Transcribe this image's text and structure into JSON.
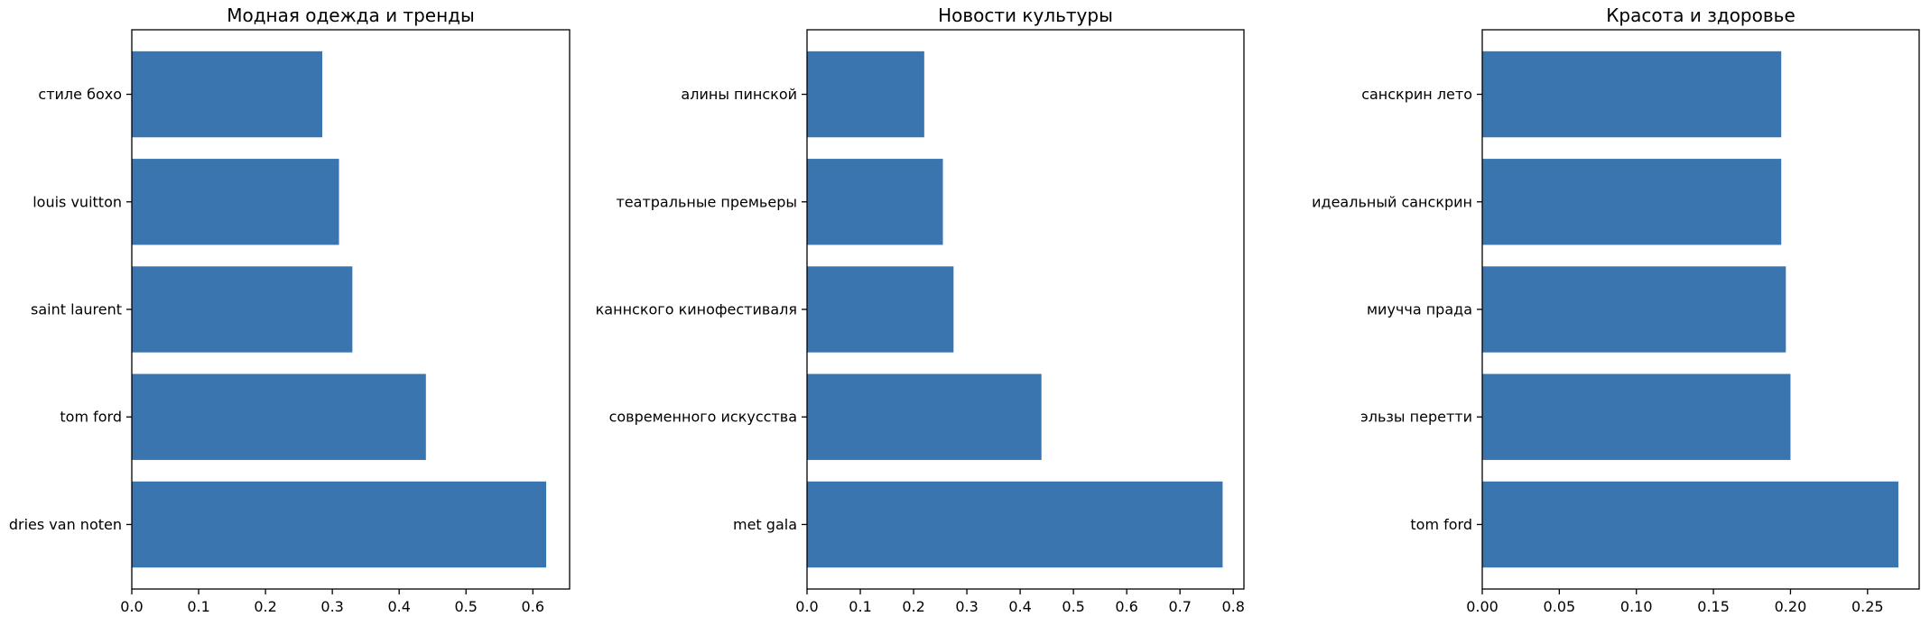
{
  "chart_data": [
    {
      "type": "bar",
      "orientation": "horizontal",
      "title": "Модная одежда и тренды",
      "categories": [
        "dries van noten",
        "tom ford",
        "saint laurent",
        "louis vuitton",
        "стиле бохо"
      ],
      "values": [
        0.62,
        0.44,
        0.33,
        0.31,
        0.285
      ],
      "xlim": [
        0,
        0.655
      ],
      "xticks": [
        "0.0",
        "0.1",
        "0.2",
        "0.3",
        "0.4",
        "0.5",
        "0.6"
      ],
      "xtick_values": [
        0,
        0.1,
        0.2,
        0.3,
        0.4,
        0.5,
        0.6
      ],
      "bar_color": "#3a75b0",
      "xlabel": "",
      "ylabel": "",
      "grid": false
    },
    {
      "type": "bar",
      "orientation": "horizontal",
      "title": "Новости культуры",
      "categories": [
        "met gala",
        "современного искусства",
        "каннского кинофестиваля",
        "театральные премьеры",
        "алины пинской"
      ],
      "values": [
        0.78,
        0.44,
        0.275,
        0.255,
        0.22
      ],
      "xlim": [
        0,
        0.82
      ],
      "xticks": [
        "0.0",
        "0.1",
        "0.2",
        "0.3",
        "0.4",
        "0.5",
        "0.6",
        "0.7",
        "0.8"
      ],
      "xtick_values": [
        0,
        0.1,
        0.2,
        0.3,
        0.4,
        0.5,
        0.6,
        0.7,
        0.8
      ],
      "bar_color": "#3a75b0",
      "xlabel": "",
      "ylabel": "",
      "grid": false
    },
    {
      "type": "bar",
      "orientation": "horizontal",
      "title": "Красота и здоровье",
      "categories": [
        "tom ford",
        "эльзы перетти",
        "миучча прада",
        "идеальный санскрин",
        "санскрин лето"
      ],
      "values": [
        0.27,
        0.2,
        0.197,
        0.194,
        0.194
      ],
      "xlim": [
        0,
        0.2835
      ],
      "xticks": [
        "0.00",
        "0.05",
        "0.10",
        "0.15",
        "0.20",
        "0.25"
      ],
      "xtick_values": [
        0,
        0.05,
        0.1,
        0.15,
        0.2,
        0.25
      ],
      "bar_color": "#3a75b0",
      "xlabel": "",
      "ylabel": "",
      "grid": false
    }
  ]
}
